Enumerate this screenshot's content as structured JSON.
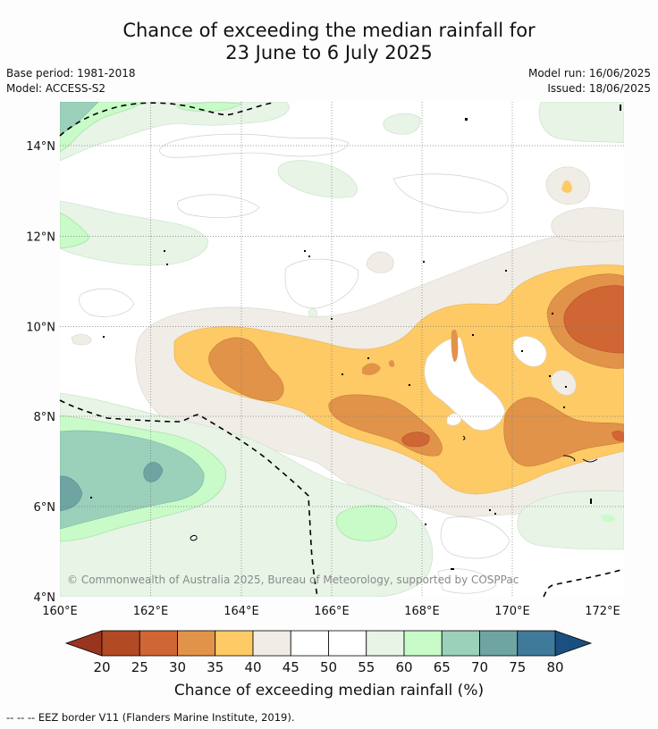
{
  "title": {
    "line1": "Chance of exceeding the median rainfall for",
    "line2": "23 June to 6 July 2025"
  },
  "meta": {
    "base_period": "Base period: 1981-2018",
    "model": "Model: ACCESS-S2",
    "model_run": "Model run: 16/06/2025",
    "issued": "Issued: 18/06/2025"
  },
  "map": {
    "lon_labels": [
      "160°E",
      "162°E",
      "164°E",
      "166°E",
      "168°E",
      "170°E",
      "172°E"
    ],
    "lat_labels": [
      "14°N",
      "12°N",
      "10°N",
      "8°N",
      "6°N",
      "4°N"
    ],
    "copyright": "© Commonwealth of Australia 2025, Bureau of Meteorology, supported by COSPPac"
  },
  "colorbar": {
    "ticks": [
      "20",
      "25",
      "30",
      "35",
      "40",
      "45",
      "50",
      "55",
      "60",
      "65",
      "70",
      "75",
      "80"
    ],
    "colors": [
      "#b24a24",
      "#cf6633",
      "#e1934a",
      "#fdca66",
      "#f0ece6",
      "#ffffff",
      "#ffffff",
      "#e7f4e6",
      "#c8fbc8",
      "#9bd0ba",
      "#6ea5a2",
      "#3f7a9a"
    ],
    "under_color": "#993420",
    "over_color": "#1a5080",
    "label": "Chance of exceeding median rainfall (%)"
  },
  "legend": {
    "eez": "--  --  -- EEZ border V11 (Flanders Marine Institute, 2019)."
  }
}
